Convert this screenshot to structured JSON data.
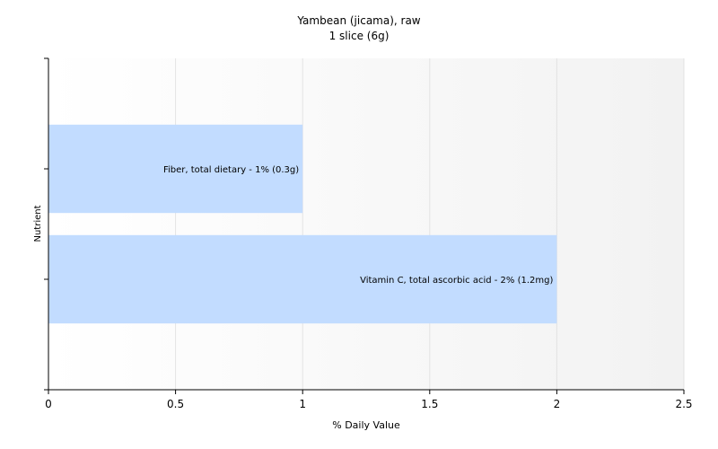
{
  "chart_data": {
    "type": "bar",
    "orientation": "horizontal",
    "title": "Yambean (jicama), raw",
    "subtitle": "1 slice (6g)",
    "xlabel": "% Daily Value",
    "ylabel": "Nutrient",
    "xlim": [
      0,
      2.5
    ],
    "xticks": [
      "0",
      "0.5",
      "1",
      "1.5",
      "2",
      "2.5"
    ],
    "grid": true,
    "bar_color": "#c2dcff",
    "categories": [
      "Fiber, total dietary",
      "Vitamin C, total ascorbic acid"
    ],
    "values": [
      1,
      2
    ],
    "labels": [
      "Fiber, total dietary - 1% (0.3g)",
      "Vitamin C, total ascorbic acid - 2% (1.2mg)"
    ]
  }
}
